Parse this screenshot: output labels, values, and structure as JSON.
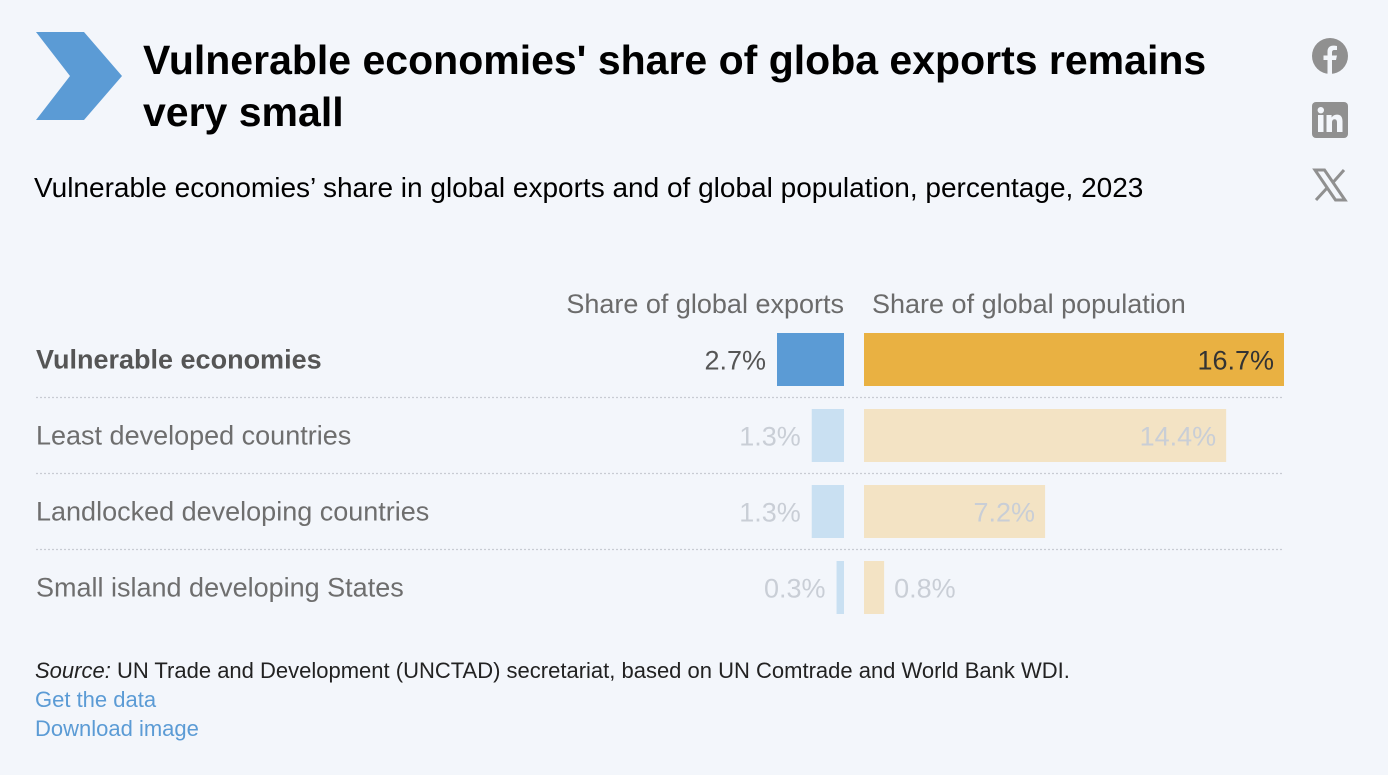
{
  "header": {
    "title": "Vulnerable economies' share of globa exports remains very small",
    "subtitle": "Vulnerable economies’ share in global exports and of global population, percentage, 2023"
  },
  "social": [
    "facebook-icon",
    "linkedin-icon",
    "x-icon"
  ],
  "chart_data": {
    "type": "bar",
    "categories": [
      "Vulnerable economies",
      "Least developed countries",
      "Landlocked developing countries",
      "Small island developing States"
    ],
    "series": [
      {
        "name": "Share of global exports",
        "values": [
          2.7,
          1.3,
          1.3,
          0.3
        ],
        "labels": [
          "2.7%",
          "1.3%",
          "1.3%",
          "0.3%"
        ],
        "color": "#5b9bd5",
        "faded_color": "#c9e0f2"
      },
      {
        "name": "Share of global population",
        "values": [
          16.7,
          14.4,
          7.2,
          0.8
        ],
        "labels": [
          "16.7%",
          "14.4%",
          "7.2%",
          "0.8%"
        ],
        "color": "#e9b142",
        "faded_color": "#f3e3c4"
      }
    ],
    "highlighted_category": "Vulnerable economies",
    "unit": "%"
  },
  "footer": {
    "source_label": "Source:",
    "source_text": " UN Trade and Development (UNCTAD) secretariat, based on UN Comtrade and World Bank WDI.",
    "get_data": "Get the data",
    "download_image": "Download image"
  }
}
